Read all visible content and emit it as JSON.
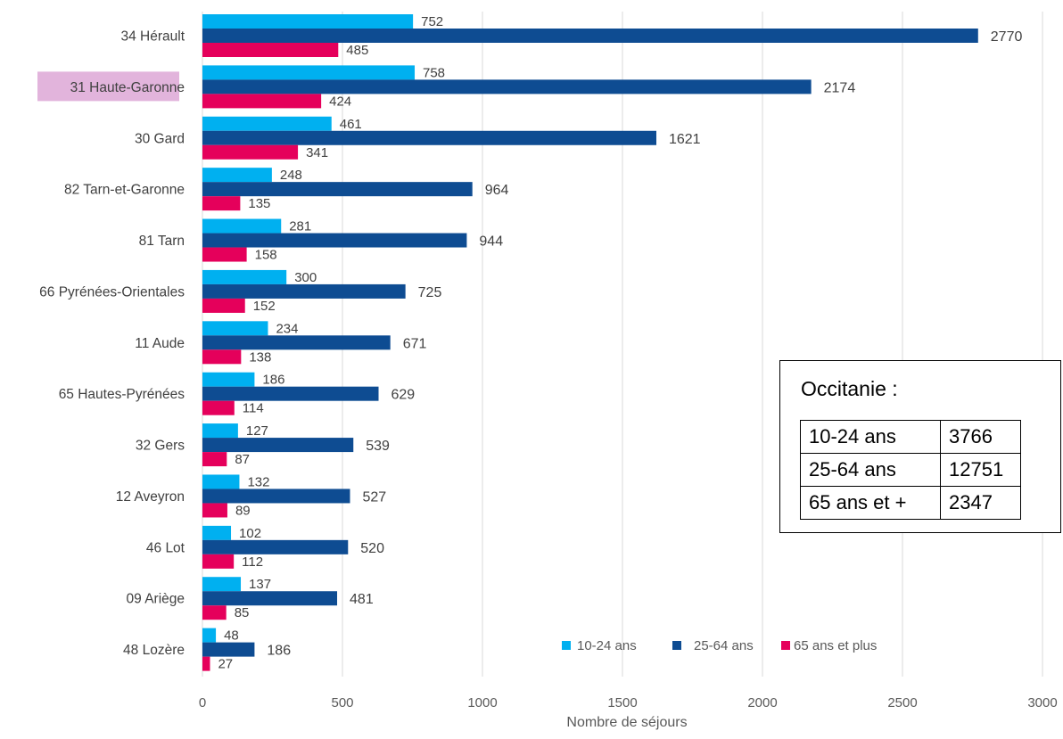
{
  "chart_data": {
    "type": "bar",
    "orientation": "horizontal",
    "categories": [
      "34 Hérault",
      "31 Haute-Garonne",
      "30 Gard",
      "82 Tarn-et-Garonne",
      "81 Tarn",
      "66 Pyrénées-Orientales",
      "11 Aude",
      "65 Hautes-Pyrénées",
      "32 Gers",
      "12 Aveyron",
      "46 Lot",
      "09 Ariège",
      "48 Lozère"
    ],
    "highlighted_category": "31 Haute-Garonne",
    "series": [
      {
        "name": "10-24 ans",
        "color": "#00b0f0",
        "values": [
          752,
          758,
          461,
          248,
          281,
          300,
          234,
          186,
          127,
          132,
          102,
          137,
          48
        ]
      },
      {
        "name": "25-64 ans",
        "color": "#0e4c92",
        "values": [
          2770,
          2174,
          1621,
          964,
          944,
          725,
          671,
          629,
          539,
          527,
          520,
          481,
          186
        ]
      },
      {
        "name": "65 ans et plus",
        "color": "#e5005b",
        "values": [
          485,
          424,
          341,
          135,
          158,
          152,
          138,
          114,
          87,
          89,
          112,
          85,
          27
        ]
      }
    ],
    "title": "",
    "xlabel": "Nombre de séjours",
    "ylabel": "",
    "xlim": [
      0,
      3000
    ],
    "ticks": [
      "0",
      "500",
      "1000",
      "1500",
      "2000",
      "2500",
      "3000"
    ],
    "grid": true,
    "legend_position": "bottom-right"
  },
  "summary": {
    "title": "Occitanie :",
    "rows": [
      {
        "label": "10-24 ans",
        "value": "3766"
      },
      {
        "label": "25-64 ans",
        "value": "12751"
      },
      {
        "label": "65 ans et +",
        "value": "2347"
      }
    ]
  },
  "colors": {
    "highlight_bg": "#e2b4dc",
    "highlight_text": "#7f3f7a"
  }
}
